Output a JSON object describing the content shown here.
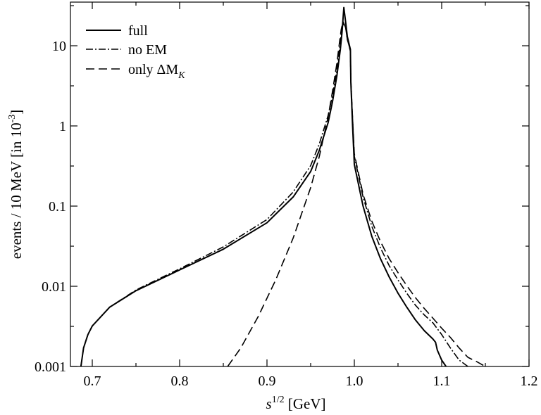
{
  "chart_data": {
    "type": "line",
    "title": "",
    "xlabel": {
      "base": "s",
      "sup": "1/2",
      "unit": " [GeV]"
    },
    "ylabel": {
      "main": "events / 10 MeV [in 10",
      "sup": "-3",
      "close": "]"
    },
    "xlim": [
      0.675,
      1.2
    ],
    "ylim": [
      0.001,
      35
    ],
    "yscale": "log",
    "grid": false,
    "legend_position": "top-left",
    "x_ticks": [
      {
        "value": 0.7,
        "label": "0.7"
      },
      {
        "value": 0.8,
        "label": "0.8"
      },
      {
        "value": 0.9,
        "label": "0.9"
      },
      {
        "value": 1.0,
        "label": "1.0"
      },
      {
        "value": 1.1,
        "label": "1.1"
      },
      {
        "value": 1.2,
        "label": "1.2"
      }
    ],
    "y_ticks": [
      {
        "value": 0.001,
        "label": "0.001"
      },
      {
        "value": 0.01,
        "label": "0.01"
      },
      {
        "value": 0.1,
        "label": "0.1"
      },
      {
        "value": 1,
        "label": "1"
      },
      {
        "value": 10,
        "label": "10"
      }
    ],
    "series": [
      {
        "name": "full",
        "style": "solid",
        "color": "#000000",
        "points": [
          [
            0.687,
            0.001
          ],
          [
            0.69,
            0.0017
          ],
          [
            0.695,
            0.0025
          ],
          [
            0.7,
            0.0032
          ],
          [
            0.72,
            0.0055
          ],
          [
            0.75,
            0.0088
          ],
          [
            0.8,
            0.016
          ],
          [
            0.85,
            0.029
          ],
          [
            0.9,
            0.062
          ],
          [
            0.93,
            0.13
          ],
          [
            0.95,
            0.27
          ],
          [
            0.96,
            0.5
          ],
          [
            0.97,
            1.1
          ],
          [
            0.975,
            2
          ],
          [
            0.98,
            4.2
          ],
          [
            0.984,
            9
          ],
          [
            0.986,
            15
          ],
          [
            0.988,
            30
          ],
          [
            0.99,
            20
          ],
          [
            0.992,
            13
          ],
          [
            0.994,
            10.5
          ],
          [
            0.9955,
            9
          ],
          [
            0.996,
            3.5
          ],
          [
            0.998,
            1
          ],
          [
            1.0,
            0.33
          ],
          [
            1.01,
            0.1
          ],
          [
            1.02,
            0.042
          ],
          [
            1.03,
            0.022
          ],
          [
            1.04,
            0.013
          ],
          [
            1.05,
            0.0082
          ],
          [
            1.06,
            0.0055
          ],
          [
            1.07,
            0.0038
          ],
          [
            1.08,
            0.0028
          ],
          [
            1.09,
            0.0022
          ],
          [
            1.093,
            0.002
          ],
          [
            1.095,
            0.0016
          ],
          [
            1.1,
            0.0012
          ],
          [
            1.105,
            0.001
          ]
        ]
      },
      {
        "name": "no EM",
        "style": "dashdot",
        "color": "#000000",
        "points": [
          [
            0.687,
            0.001
          ],
          [
            0.69,
            0.0017
          ],
          [
            0.695,
            0.0025
          ],
          [
            0.7,
            0.0032
          ],
          [
            0.72,
            0.0055
          ],
          [
            0.75,
            0.009
          ],
          [
            0.8,
            0.0165
          ],
          [
            0.85,
            0.031
          ],
          [
            0.9,
            0.068
          ],
          [
            0.93,
            0.15
          ],
          [
            0.95,
            0.32
          ],
          [
            0.96,
            0.6
          ],
          [
            0.97,
            1.35
          ],
          [
            0.975,
            2.4
          ],
          [
            0.98,
            5
          ],
          [
            0.983,
            9
          ],
          [
            0.985,
            14
          ],
          [
            0.987,
            19
          ],
          [
            0.99,
            17
          ],
          [
            0.992,
            12
          ],
          [
            0.994,
            10
          ],
          [
            0.9955,
            8.5
          ],
          [
            0.996,
            3.8
          ],
          [
            0.998,
            1.2
          ],
          [
            1.0,
            0.42
          ],
          [
            1.01,
            0.13
          ],
          [
            1.02,
            0.056
          ],
          [
            1.03,
            0.03
          ],
          [
            1.04,
            0.018
          ],
          [
            1.05,
            0.012
          ],
          [
            1.06,
            0.0082
          ],
          [
            1.07,
            0.0058
          ],
          [
            1.08,
            0.0044
          ],
          [
            1.09,
            0.0035
          ],
          [
            1.1,
            0.0025
          ],
          [
            1.11,
            0.0017
          ],
          [
            1.12,
            0.0012
          ],
          [
            1.13,
            0.001
          ]
        ]
      },
      {
        "name": "only ΔM_K",
        "style": "dashed",
        "color": "#000000",
        "points": [
          [
            0.855,
            0.001
          ],
          [
            0.87,
            0.0017
          ],
          [
            0.89,
            0.0042
          ],
          [
            0.91,
            0.012
          ],
          [
            0.93,
            0.04
          ],
          [
            0.95,
            0.17
          ],
          [
            0.96,
            0.42
          ],
          [
            0.97,
            1.3
          ],
          [
            0.975,
            2.7
          ],
          [
            0.98,
            6
          ],
          [
            0.983,
            11
          ],
          [
            0.985,
            16
          ],
          [
            0.987,
            20
          ],
          [
            0.99,
            17
          ],
          [
            0.992,
            12
          ],
          [
            0.994,
            10
          ],
          [
            0.9955,
            8.5
          ],
          [
            0.996,
            3.8
          ],
          [
            0.998,
            1.25
          ],
          [
            1.0,
            0.45
          ],
          [
            1.01,
            0.14
          ],
          [
            1.02,
            0.065
          ],
          [
            1.03,
            0.036
          ],
          [
            1.04,
            0.022
          ],
          [
            1.05,
            0.0148
          ],
          [
            1.06,
            0.0102
          ],
          [
            1.07,
            0.0072
          ],
          [
            1.08,
            0.0053
          ],
          [
            1.09,
            0.004
          ],
          [
            1.1,
            0.003
          ],
          [
            1.11,
            0.0023
          ],
          [
            1.12,
            0.0017
          ],
          [
            1.13,
            0.0013
          ],
          [
            1.14,
            0.00115
          ],
          [
            1.15,
            0.001
          ]
        ]
      }
    ],
    "legend": {
      "items": [
        {
          "label": "full",
          "style": "solid"
        },
        {
          "label": "no EM",
          "style": "dashdot"
        },
        {
          "label_prefix": "only ΔM",
          "label_sub": "K",
          "style": "dashed"
        }
      ]
    }
  }
}
